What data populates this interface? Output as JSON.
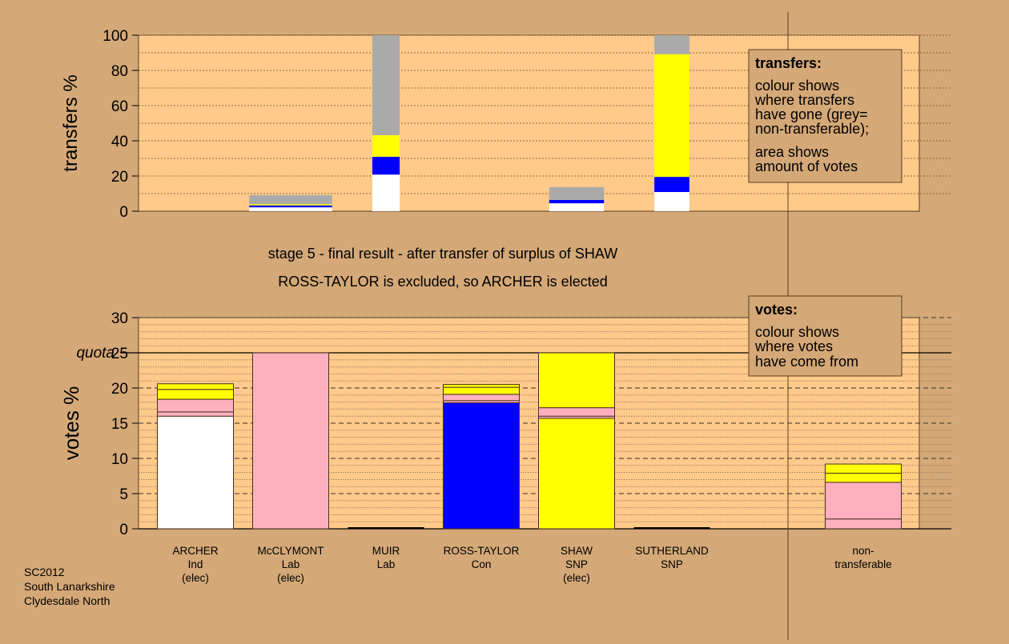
{
  "colors": {
    "background": "#D4A877",
    "plot": "#FFCA8A",
    "white": "#FFFFFF",
    "pink": "#FFB0C0",
    "blue": "#0000FF",
    "yellow": "#FFFF00",
    "grey": "#AAAAAA"
  },
  "titles": {
    "line1": "stage 5 - final result - after transfer of surplus of SHAW",
    "line2": "ROSS-TAYLOR is excluded, so ARCHER is elected"
  },
  "footer": {
    "line1": "SC2012",
    "line2": "South Lanarkshire",
    "line3": "Clydesdale North"
  },
  "candidates": [
    {
      "name": "ARCHER",
      "party": "Ind",
      "status": "(elec)"
    },
    {
      "name": "McCLYMONT",
      "party": "Lab",
      "status": "(elec)"
    },
    {
      "name": "MUIR",
      "party": "Lab",
      "status": ""
    },
    {
      "name": "ROSS-TAYLOR",
      "party": "Con",
      "status": ""
    },
    {
      "name": "SHAW",
      "party": "SNP",
      "status": "(elec)"
    },
    {
      "name": "SUTHERLAND",
      "party": "SNP",
      "status": ""
    },
    {
      "name": "non-",
      "party": "transferable",
      "status": ""
    }
  ],
  "legend_transfers": {
    "title": "transfers:",
    "l1": "colour shows",
    "l2": "where transfers",
    "l3": "have gone (grey=",
    "l4": "non-transferable);",
    "l5": "area shows",
    "l6": "amount of votes"
  },
  "legend_votes": {
    "title": "votes:",
    "l1": "colour shows",
    "l2": "where votes",
    "l3": "have come from"
  },
  "chart_data": [
    {
      "type": "bar",
      "title": "transfers",
      "ylabel": "transfers %",
      "ylim": [
        0,
        100
      ],
      "yticks": [
        0,
        20,
        40,
        60,
        80,
        100
      ],
      "grid": "dotted every 10",
      "legend": "top-right",
      "bars": [
        {
          "candidate": 1,
          "relative_width": 1.09,
          "segments": [
            {
              "color": "white",
              "from": 0,
              "to": 2.2
            },
            {
              "color": "blue",
              "from": 2.2,
              "to": 3.3
            },
            {
              "color": "yellow",
              "from": 3.3,
              "to": 4.0
            },
            {
              "color": "grey",
              "from": 4.0,
              "to": 9.1
            }
          ]
        },
        {
          "candidate": 2,
          "relative_width": 0.36,
          "segments": [
            {
              "color": "white",
              "from": 0,
              "to": 20.8
            },
            {
              "color": "blue",
              "from": 20.8,
              "to": 30.9
            },
            {
              "color": "yellow",
              "from": 30.9,
              "to": 43.2
            },
            {
              "color": "grey",
              "from": 43.2,
              "to": 100
            }
          ]
        },
        {
          "candidate": 4,
          "relative_width": 0.72,
          "segments": [
            {
              "color": "white",
              "from": 0,
              "to": 4.5
            },
            {
              "color": "blue",
              "from": 4.5,
              "to": 6.4
            },
            {
              "color": "grey",
              "from": 6.4,
              "to": 13.6
            }
          ]
        },
        {
          "candidate": 5,
          "relative_width": 0.46,
          "segments": [
            {
              "color": "white",
              "from": 0,
              "to": 10.9
            },
            {
              "color": "blue",
              "from": 10.9,
              "to": 19.5
            },
            {
              "color": "yellow",
              "from": 19.5,
              "to": 89.2
            },
            {
              "color": "grey",
              "from": 89.2,
              "to": 100
            }
          ]
        }
      ]
    },
    {
      "type": "bar",
      "title": "votes",
      "ylabel": "votes %",
      "ylim": [
        0,
        30
      ],
      "yticks": [
        0,
        5,
        10,
        15,
        20,
        25,
        30
      ],
      "quota": 25,
      "quota_label": "quota",
      "grid": "dashed every 5, dotted every 1",
      "legend": "top-right",
      "bars": [
        {
          "candidate": 0,
          "segments": [
            {
              "color": "white",
              "from": 0,
              "to": 16.0
            },
            {
              "color": "pink",
              "from": 16.0,
              "to": 16.6
            },
            {
              "color": "pink",
              "from": 16.6,
              "to": 18.4
            },
            {
              "color": "yellow",
              "from": 18.4,
              "to": 19.8
            },
            {
              "color": "yellow",
              "from": 19.8,
              "to": 20.6
            }
          ]
        },
        {
          "candidate": 1,
          "segments": [
            {
              "color": "pink",
              "from": 0,
              "to": 25.0
            }
          ]
        },
        {
          "candidate": 2,
          "segments": []
        },
        {
          "candidate": 3,
          "segments": [
            {
              "color": "blue",
              "from": 0,
              "to": 17.9
            },
            {
              "color": "pink",
              "from": 17.9,
              "to": 18.2
            },
            {
              "color": "pink",
              "from": 18.2,
              "to": 19.1
            },
            {
              "color": "yellow",
              "from": 19.1,
              "to": 20.1
            },
            {
              "color": "yellow",
              "from": 20.1,
              "to": 20.5
            }
          ]
        },
        {
          "candidate": 4,
          "segments": [
            {
              "color": "yellow",
              "from": 0,
              "to": 15.7
            },
            {
              "color": "pink",
              "from": 15.7,
              "to": 16.0
            },
            {
              "color": "pink",
              "from": 16.0,
              "to": 17.2
            },
            {
              "color": "yellow",
              "from": 17.2,
              "to": 25.0
            }
          ]
        },
        {
          "candidate": 5,
          "segments": []
        },
        {
          "candidate": 6,
          "segments": [
            {
              "color": "pink",
              "from": 0,
              "to": 1.4
            },
            {
              "color": "pink",
              "from": 1.4,
              "to": 6.6
            },
            {
              "color": "yellow",
              "from": 6.6,
              "to": 7.9
            },
            {
              "color": "yellow",
              "from": 7.9,
              "to": 9.2
            }
          ]
        }
      ]
    }
  ]
}
